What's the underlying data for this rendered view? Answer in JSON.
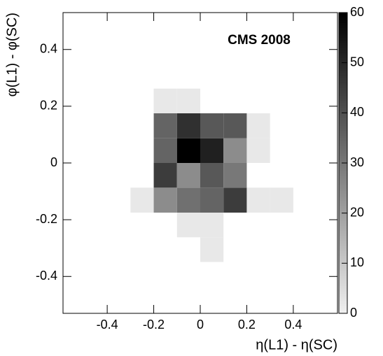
{
  "chart_data": {
    "type": "heatmap",
    "title": "CMS 2008",
    "x_label": "η(L1) - η(SC)",
    "y_label": "φ(L1) - φ(SC)",
    "x_bins": [
      -0.3,
      -0.2,
      -0.1,
      0,
      0.1,
      0.2,
      0.3,
      0.4
    ],
    "y_bins": [
      -0.349,
      -0.262,
      -0.175,
      -0.087,
      0,
      0.087,
      0.175,
      0.262
    ],
    "z": [
      [
        null,
        null,
        null,
        2,
        null,
        null,
        null
      ],
      [
        null,
        null,
        2,
        2,
        null,
        null,
        null
      ],
      [
        2,
        25,
        32,
        35,
        45,
        2,
        2
      ],
      [
        null,
        45,
        25,
        38,
        30,
        null,
        null
      ],
      [
        null,
        35,
        60,
        52,
        25,
        2,
        null
      ],
      [
        null,
        35,
        48,
        38,
        38,
        2,
        null
      ],
      [
        null,
        2,
        2,
        null,
        null,
        null,
        null
      ]
    ],
    "xlim": [
      -0.59,
      0.59
    ],
    "xticks": [
      -0.4,
      -0.2,
      0,
      0.2,
      0.4
    ],
    "ylim": [
      -0.53,
      0.53
    ],
    "yticks": [
      -0.4,
      -0.2,
      0,
      0.2,
      0.4
    ],
    "zlim": [
      0,
      60
    ],
    "zticks": [
      0,
      10,
      20,
      30,
      40,
      50,
      60
    ],
    "colors": [
      "#f0f0f0",
      "#000000"
    ]
  }
}
